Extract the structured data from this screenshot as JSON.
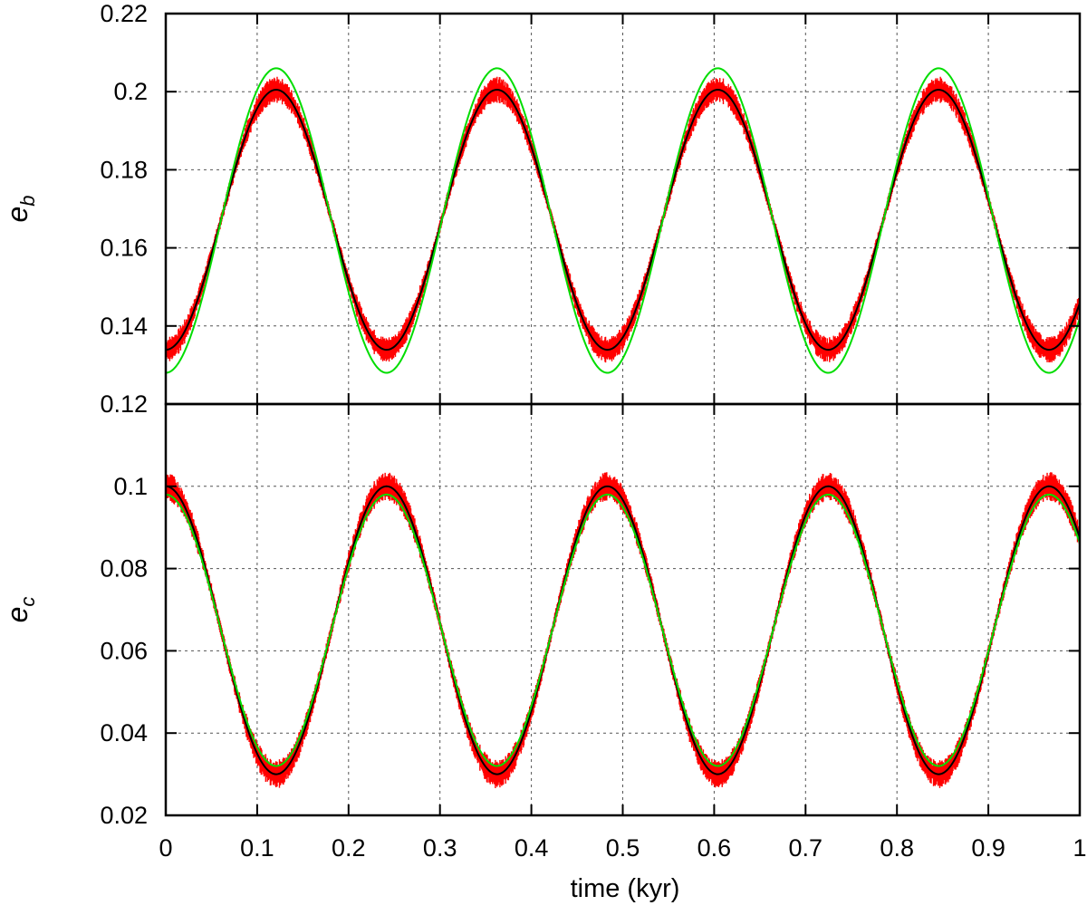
{
  "chart_data": [
    {
      "type": "line",
      "panel": "top",
      "ylabel": "e",
      "ylabel_subscript": "b",
      "xlim": [
        0,
        1
      ],
      "ylim": [
        0.12,
        0.22
      ],
      "yticks": [
        "0.12",
        "0.14",
        "0.16",
        "0.18",
        "0.2",
        "0.22"
      ],
      "grid": true,
      "series": [
        {
          "color": "#ff0000",
          "style": "band",
          "t0": 0.0,
          "period": 0.2416,
          "mean": 0.1672,
          "amplitude": 0.0333,
          "phase": "min",
          "jitter": 0.0024
        },
        {
          "color": "#000000",
          "style": "line",
          "t0": 0.0,
          "period": 0.2416,
          "mean": 0.1672,
          "amplitude": 0.0333,
          "phase": "min"
        },
        {
          "color": "#00dd00",
          "style": "line",
          "t0": 0.0,
          "period": 0.2416,
          "mean": 0.167,
          "amplitude": 0.039,
          "phase": "min"
        }
      ]
    },
    {
      "type": "line",
      "panel": "bottom",
      "ylabel": "e",
      "ylabel_subscript": "c",
      "xlabel": "time (kyr)",
      "xlim": [
        0,
        1
      ],
      "ylim": [
        0.02,
        0.12
      ],
      "xticks": [
        "0",
        "0.1",
        "0.2",
        "0.3",
        "0.4",
        "0.5",
        "0.6",
        "0.7",
        "0.8",
        "0.9",
        "1"
      ],
      "yticks": [
        "0.02",
        "0.04",
        "0.06",
        "0.08",
        "0.1"
      ],
      "grid": true,
      "series": [
        {
          "color": "#ff0000",
          "style": "band",
          "t0": 0.0,
          "period": 0.2416,
          "mean": 0.065,
          "amplitude": 0.035,
          "phase": "max",
          "jitter": 0.0025
        },
        {
          "color": "#000000",
          "style": "line",
          "t0": 0.0,
          "period": 0.2416,
          "mean": 0.065,
          "amplitude": 0.035,
          "phase": "max"
        },
        {
          "color": "#00dd00",
          "style": "line",
          "t0": 0.0,
          "period": 0.2416,
          "mean": 0.065,
          "amplitude": 0.033,
          "phase": "max"
        }
      ]
    }
  ]
}
